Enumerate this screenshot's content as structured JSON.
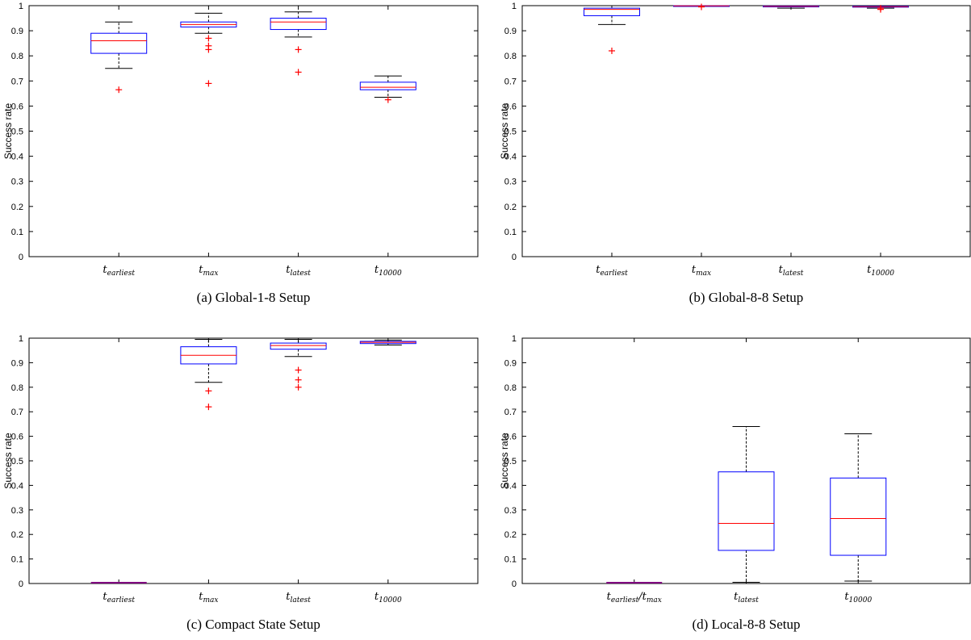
{
  "chart_data": [
    {
      "type": "box",
      "caption": "(a) Global-1-8 Setup",
      "ylabel": "Success rate",
      "ylim": [
        0,
        1
      ],
      "yticks": [
        0,
        0.1,
        0.2,
        0.3,
        0.4,
        0.5,
        0.6,
        0.7,
        0.8,
        0.9,
        1
      ],
      "ytick_labels": [
        "0",
        "0.1",
        "0.2",
        "0.3",
        "0.4",
        "0.5",
        "0.6",
        "0.7",
        "0.8",
        "0.9",
        "1"
      ],
      "categories": [
        {
          "base": "t",
          "sub": "earliest"
        },
        {
          "base": "t",
          "sub": "max"
        },
        {
          "base": "t",
          "sub": "latest"
        },
        {
          "base": "t",
          "sub": "10000"
        }
      ],
      "boxes": [
        {
          "whislo": 0.75,
          "q1": 0.81,
          "med": 0.86,
          "q3": 0.89,
          "whishi": 0.935,
          "fliers": [
            0.665
          ]
        },
        {
          "whislo": 0.89,
          "q1": 0.915,
          "med": 0.925,
          "q3": 0.935,
          "whishi": 0.97,
          "fliers": [
            0.87,
            0.84,
            0.825,
            0.69
          ]
        },
        {
          "whislo": 0.875,
          "q1": 0.905,
          "med": 0.935,
          "q3": 0.95,
          "whishi": 0.975,
          "fliers": [
            0.825,
            0.735
          ]
        },
        {
          "whislo": 0.635,
          "q1": 0.665,
          "med": 0.675,
          "q3": 0.695,
          "whishi": 0.72,
          "fliers": [
            0.625
          ]
        }
      ]
    },
    {
      "type": "box",
      "caption": "(b) Global-8-8 Setup",
      "ylabel": "Success rate",
      "ylim": [
        0,
        1
      ],
      "yticks": [
        0,
        0.1,
        0.2,
        0.3,
        0.4,
        0.5,
        0.6,
        0.7,
        0.8,
        0.9,
        1
      ],
      "ytick_labels": [
        "0",
        "0.1",
        "0.2",
        "0.3",
        "0.4",
        "0.5",
        "0.6",
        "0.7",
        "0.8",
        "0.9",
        "1"
      ],
      "categories": [
        {
          "base": "t",
          "sub": "earliest"
        },
        {
          "base": "t",
          "sub": "max"
        },
        {
          "base": "t",
          "sub": "latest"
        },
        {
          "base": "t",
          "sub": "10000"
        }
      ],
      "boxes": [
        {
          "whislo": 0.925,
          "q1": 0.96,
          "med": 0.985,
          "q3": 0.99,
          "whishi": 1.0,
          "fliers": [
            0.82
          ]
        },
        {
          "whislo": 0.997,
          "q1": 0.998,
          "med": 0.999,
          "q3": 1.0,
          "whishi": 1.0,
          "fliers": [
            0.995
          ]
        },
        {
          "whislo": 0.99,
          "q1": 0.995,
          "med": 0.997,
          "q3": 0.999,
          "whishi": 1.0,
          "fliers": []
        },
        {
          "whislo": 0.99,
          "q1": 0.994,
          "med": 0.996,
          "q3": 0.998,
          "whishi": 1.0,
          "fliers": [
            0.99,
            0.985
          ]
        }
      ]
    },
    {
      "type": "box",
      "caption": "(c) Compact State Setup",
      "ylabel": "Success rate",
      "ylim": [
        0,
        1
      ],
      "yticks": [
        0,
        0.1,
        0.2,
        0.3,
        0.4,
        0.5,
        0.6,
        0.7,
        0.8,
        0.9,
        1
      ],
      "ytick_labels": [
        "0",
        "0.1",
        "0.2",
        "0.3",
        "0.4",
        "0.5",
        "0.6",
        "0.7",
        "0.8",
        "0.9",
        "1"
      ],
      "categories": [
        {
          "base": "t",
          "sub": "earliest"
        },
        {
          "base": "t",
          "sub": "max"
        },
        {
          "base": "t",
          "sub": "latest"
        },
        {
          "base": "t",
          "sub": "10000"
        }
      ],
      "boxes": [
        {
          "whislo": 0,
          "q1": 0,
          "med": 0,
          "q3": 0,
          "whishi": 0,
          "fliers": []
        },
        {
          "whislo": 0.82,
          "q1": 0.895,
          "med": 0.93,
          "q3": 0.965,
          "whishi": 0.995,
          "fliers": [
            0.785,
            0.72
          ]
        },
        {
          "whislo": 0.925,
          "q1": 0.955,
          "med": 0.97,
          "q3": 0.98,
          "whishi": 0.995,
          "fliers": [
            0.87,
            0.83,
            0.8
          ]
        },
        {
          "whislo": 0.972,
          "q1": 0.978,
          "med": 0.983,
          "q3": 0.987,
          "whishi": 0.992,
          "fliers": []
        }
      ]
    },
    {
      "type": "box",
      "caption": "(d) Local-8-8 Setup",
      "ylabel": "Success rate",
      "ylim": [
        0,
        1
      ],
      "yticks": [
        0,
        0.1,
        0.2,
        0.3,
        0.4,
        0.5,
        0.6,
        0.7,
        0.8,
        0.9,
        1
      ],
      "ytick_labels": [
        "0",
        "0.1",
        "0.2",
        "0.3",
        "0.4",
        "0.5",
        "0.6",
        "0.7",
        "0.8",
        "0.9",
        "1"
      ],
      "categories": [
        {
          "base": "t",
          "sub": "earliest",
          "base2": "t",
          "sub2": "max"
        },
        {
          "base": "t",
          "sub": "latest"
        },
        {
          "base": "t",
          "sub": "10000"
        }
      ],
      "boxes": [
        {
          "whislo": 0,
          "q1": 0,
          "med": 0,
          "q3": 0,
          "whishi": 0,
          "fliers": []
        },
        {
          "whislo": 0.005,
          "q1": 0.135,
          "med": 0.245,
          "q3": 0.455,
          "whishi": 0.64,
          "fliers": []
        },
        {
          "whislo": 0.01,
          "q1": 0.115,
          "med": 0.265,
          "q3": 0.43,
          "whishi": 0.61,
          "fliers": []
        }
      ]
    }
  ],
  "colors": {
    "box": "#0000ff",
    "median": "#ff0000",
    "flier": "#ff0000",
    "whisker": "#000000",
    "degenerate": "#800080"
  }
}
